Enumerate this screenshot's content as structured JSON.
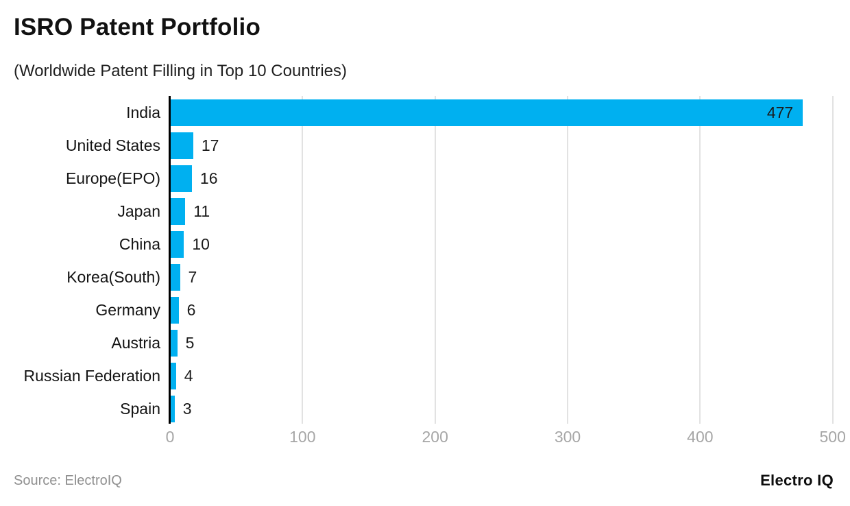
{
  "header": {
    "title": "ISRO Patent Portfolio",
    "subtitle": "(Worldwide Patent Filling in Top 10 Countries)"
  },
  "footer": {
    "source": "Source: ElectroIQ",
    "brand": "Electro IQ"
  },
  "colors": {
    "bar": "#00b0f0",
    "axis": "#000000",
    "gridline": "#e2e2e2",
    "tick_text": "#a6a6a6",
    "label_text": "#141414",
    "source_text": "#8f8f8f"
  },
  "chart_data": {
    "type": "bar",
    "orientation": "horizontal",
    "title": "ISRO Patent Portfolio",
    "subtitle": "(Worldwide Patent Filling in Top 10 Countries)",
    "categories": [
      "India",
      "United States",
      "Europe(EPO)",
      "Japan",
      "China",
      "Korea(South)",
      "Germany",
      "Austria",
      "Russian Federation",
      "Spain"
    ],
    "values": [
      477,
      17,
      16,
      11,
      10,
      7,
      6,
      5,
      4,
      3
    ],
    "xlabel": "",
    "ylabel": "",
    "xlim": [
      0,
      500
    ],
    "xticks": [
      0,
      100,
      200,
      300,
      400,
      500
    ],
    "grid": true,
    "legend": "none",
    "value_labels": true
  }
}
